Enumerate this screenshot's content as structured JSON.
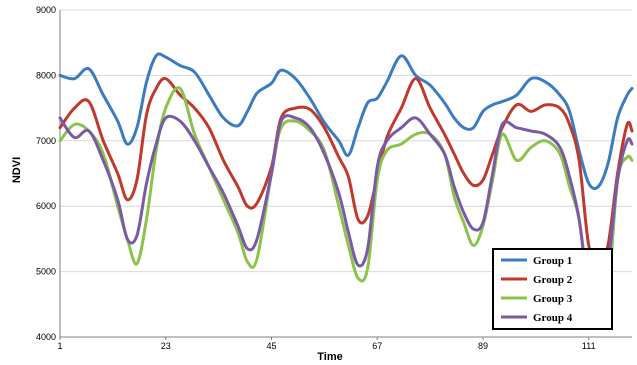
{
  "chart_data": {
    "type": "line",
    "xlabel": "Time",
    "ylabel": "NDVI",
    "xlim": [
      1,
      120
    ],
    "ylim": [
      4000,
      9000
    ],
    "x_ticks": [
      1,
      23,
      45,
      67,
      89,
      111
    ],
    "y_ticks": [
      4000,
      5000,
      6000,
      7000,
      8000,
      9000
    ],
    "grid": "horizontal",
    "legend_position": "bottom-right",
    "x": [
      1,
      4,
      7,
      10,
      13,
      15,
      17,
      19,
      21,
      23,
      26,
      29,
      32,
      35,
      38,
      40,
      42,
      45,
      47,
      50,
      53,
      56,
      59,
      61,
      63,
      65,
      67,
      69,
      72,
      75,
      78,
      81,
      83,
      85,
      87,
      89,
      91,
      93,
      96,
      99,
      102,
      105,
      107,
      109,
      111,
      113,
      115,
      117,
      119,
      120
    ],
    "series": [
      {
        "name": "Group 1",
        "color": "#3b7bbf",
        "values": [
          8000,
          7950,
          8100,
          7700,
          7300,
          6950,
          7200,
          7900,
          8300,
          8280,
          8150,
          8050,
          7700,
          7350,
          7230,
          7450,
          7730,
          7880,
          8080,
          7950,
          7650,
          7280,
          7000,
          6780,
          7200,
          7580,
          7650,
          7900,
          8300,
          8000,
          7850,
          7580,
          7350,
          7200,
          7200,
          7450,
          7550,
          7600,
          7700,
          7950,
          7900,
          7700,
          7450,
          6850,
          6350,
          6300,
          6650,
          7350,
          7700,
          7800
        ]
      },
      {
        "name": "Group 2",
        "color": "#c0392b",
        "values": [
          7200,
          7500,
          7600,
          7000,
          6500,
          6100,
          6400,
          7400,
          7800,
          7950,
          7700,
          7500,
          7200,
          6700,
          6300,
          6000,
          6050,
          6600,
          7350,
          7500,
          7480,
          7200,
          6750,
          6450,
          5800,
          5850,
          6450,
          7050,
          7500,
          7950,
          7500,
          7100,
          6800,
          6500,
          6320,
          6400,
          6800,
          7200,
          7550,
          7450,
          7550,
          7500,
          7250,
          6700,
          5400,
          5150,
          5400,
          6500,
          7250,
          7150
        ]
      },
      {
        "name": "Group 3",
        "color": "#8bc34a",
        "values": [
          7000,
          7250,
          7150,
          6800,
          6000,
          5500,
          5120,
          5800,
          6850,
          7500,
          7800,
          7100,
          6600,
          6100,
          5600,
          5150,
          5200,
          6500,
          7200,
          7300,
          7150,
          6850,
          6000,
          5400,
          4900,
          5050,
          6400,
          6850,
          6950,
          7100,
          7100,
          6800,
          6150,
          5750,
          5400,
          5700,
          6400,
          7100,
          6700,
          6900,
          7000,
          6800,
          6300,
          5800,
          4750,
          4550,
          4700,
          6400,
          6750,
          6700
        ]
      },
      {
        "name": "Group 4",
        "color": "#7a5aa6",
        "values": [
          7350,
          7050,
          7150,
          6700,
          6100,
          5500,
          5550,
          6350,
          6950,
          7350,
          7300,
          7000,
          6600,
          6200,
          5700,
          5350,
          5500,
          6500,
          7300,
          7350,
          7200,
          6800,
          6200,
          5600,
          5100,
          5350,
          6600,
          7000,
          7200,
          7350,
          7100,
          6800,
          6300,
          5900,
          5650,
          5750,
          6500,
          7250,
          7200,
          7150,
          7100,
          6900,
          6450,
          5800,
          4700,
          4600,
          5100,
          6400,
          7000,
          6950
        ]
      }
    ]
  }
}
